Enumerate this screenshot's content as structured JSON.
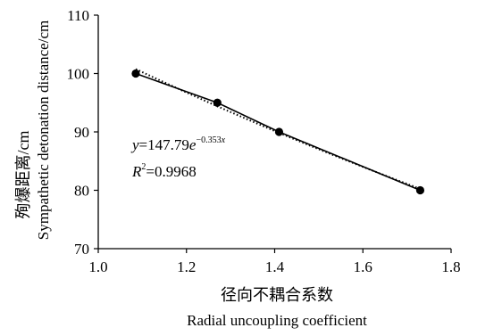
{
  "chart_data": {
    "type": "scatter",
    "x": [
      1.085,
      1.27,
      1.41,
      1.73
    ],
    "y": [
      100,
      95,
      90,
      80
    ],
    "xlim": [
      1.0,
      1.8
    ],
    "ylim": [
      70,
      110
    ],
    "x_ticks": [
      "1.0",
      "1.2",
      "1.4",
      "1.6",
      "1.8"
    ],
    "y_ticks": [
      "70",
      "80",
      "90",
      "100",
      "110"
    ],
    "xlabel_cn": "径向不耦合系数",
    "xlabel_en": "Radial uncoupling coefficient",
    "ylabel_cn": "殉爆距离/cm",
    "ylabel_en": "Sympathetic detonation distance/cm",
    "trendline": {
      "type": "exponential",
      "a": 147.79,
      "b": -0.353,
      "style": "dotted"
    },
    "annotation": {
      "eq_y": "y",
      "eq_equals": "=147.79",
      "eq_e": "e",
      "eq_exp": "−0.353",
      "eq_exp_var": "x",
      "r2_R": "R",
      "r2_sup": "2",
      "r2_val": "=0.9968"
    },
    "grid": false,
    "legend": "none",
    "colors": {
      "series": "#000000",
      "axis": "#000000"
    }
  }
}
